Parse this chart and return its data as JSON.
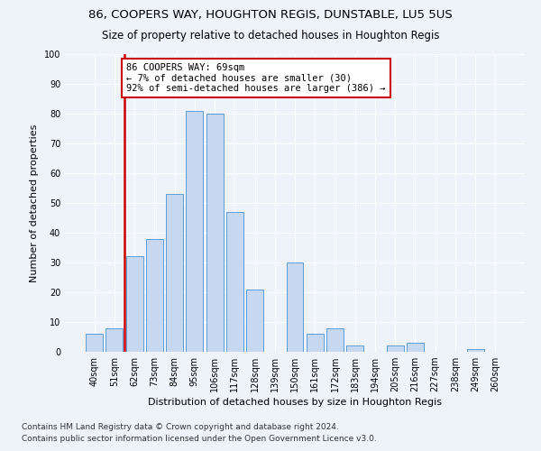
{
  "title1": "86, COOPERS WAY, HOUGHTON REGIS, DUNSTABLE, LU5 5US",
  "title2": "Size of property relative to detached houses in Houghton Regis",
  "xlabel": "Distribution of detached houses by size in Houghton Regis",
  "ylabel": "Number of detached properties",
  "categories": [
    "40sqm",
    "51sqm",
    "62sqm",
    "73sqm",
    "84sqm",
    "95sqm",
    "106sqm",
    "117sqm",
    "128sqm",
    "139sqm",
    "150sqm",
    "161sqm",
    "172sqm",
    "183sqm",
    "194sqm",
    "205sqm",
    "216sqm",
    "227sqm",
    "238sqm",
    "249sqm",
    "260sqm"
  ],
  "values": [
    6,
    8,
    32,
    38,
    53,
    81,
    80,
    47,
    21,
    0,
    30,
    6,
    8,
    2,
    0,
    2,
    3,
    0,
    0,
    1,
    0
  ],
  "bar_color": "#c5d8f0",
  "bar_edge_color": "#5b9bd5",
  "vline_color": "#cc0000",
  "annotation_line1": "86 COOPERS WAY: 69sqm",
  "annotation_line2": "← 7% of detached houses are smaller (30)",
  "annotation_line3": "92% of semi-detached houses are larger (386) →",
  "annotation_box_color": "#ffffff",
  "annotation_box_edge": "#cc0000",
  "ylim": [
    0,
    100
  ],
  "yticks": [
    0,
    10,
    20,
    30,
    40,
    50,
    60,
    70,
    80,
    90,
    100
  ],
  "footnote1": "Contains HM Land Registry data © Crown copyright and database right 2024.",
  "footnote2": "Contains public sector information licensed under the Open Government Licence v3.0.",
  "background_color": "#eef2f9",
  "grid_color": "#ffffff",
  "title1_fontsize": 9.5,
  "title2_fontsize": 8.5,
  "xlabel_fontsize": 8,
  "ylabel_fontsize": 8,
  "tick_fontsize": 7,
  "annotation_fontsize": 7.5,
  "footnote_fontsize": 6.5
}
